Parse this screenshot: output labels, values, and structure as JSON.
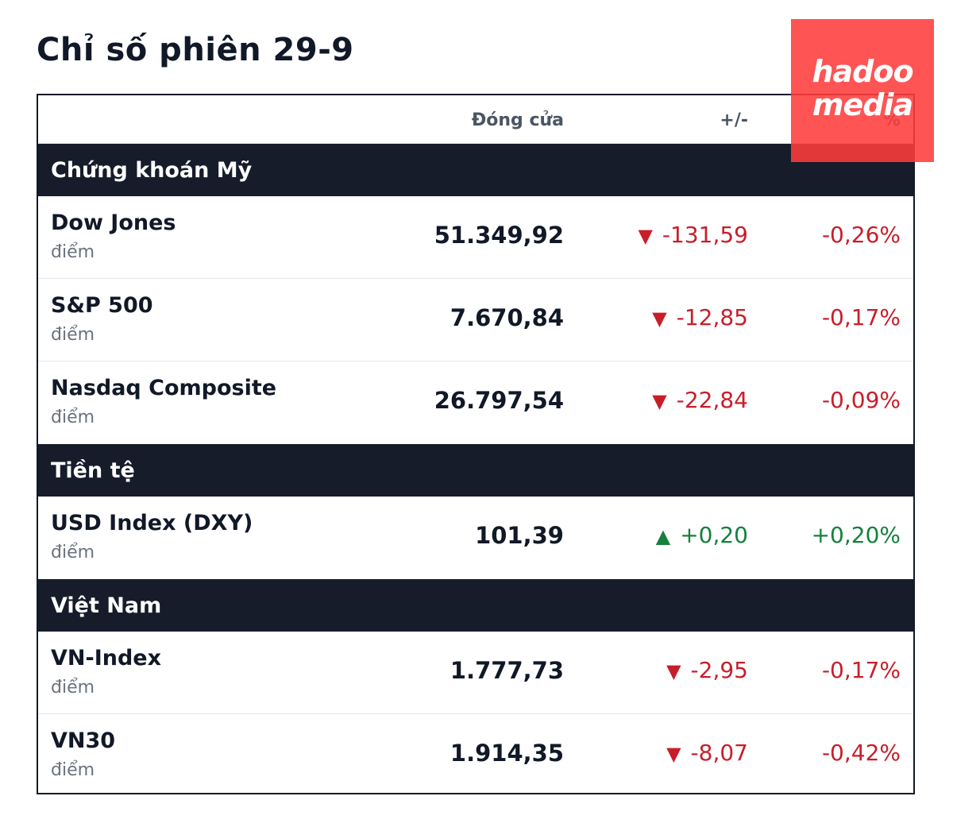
{
  "title": "Chỉ số phiên 29-9",
  "headers": {
    "close": "Đóng cửa",
    "change": "+/-",
    "pct": "%"
  },
  "sections": [
    {
      "label": "Chứng khoán Mỹ",
      "rows": [
        {
          "name": "Dow Jones",
          "unit": "điểm",
          "close": "51.349,92",
          "arrow": "▼",
          "change": "-131,59",
          "pct": "-0,26%",
          "direction": "down"
        },
        {
          "name": "S&P 500",
          "unit": "điểm",
          "close": "7.670,84",
          "arrow": "▼",
          "change": "-12,85",
          "pct": "-0,17%",
          "direction": "down"
        },
        {
          "name": "Nasdaq Composite",
          "unit": "điểm",
          "close": "26.797,54",
          "arrow": "▼",
          "change": "-22,84",
          "pct": "-0,09%",
          "direction": "down"
        }
      ]
    },
    {
      "label": "Tiền tệ",
      "rows": [
        {
          "name": "USD Index (DXY)",
          "unit": "điểm",
          "close": "101,39",
          "arrow": "▲",
          "change": "+0,20",
          "pct": "+0,20%",
          "direction": "up"
        }
      ]
    },
    {
      "label": "Việt Nam",
      "rows": [
        {
          "name": "VN-Index",
          "unit": "điểm",
          "close": "1.777,73",
          "arrow": "▼",
          "change": "-2,95",
          "pct": "-0,17%",
          "direction": "down"
        },
        {
          "name": "VN30",
          "unit": "điểm",
          "close": "1.914,35",
          "arrow": "▼",
          "change": "-8,07",
          "pct": "-0,42%",
          "direction": "down"
        }
      ]
    }
  ],
  "logo": {
    "line1": "hadoo",
    "line2": "media"
  },
  "colors": {
    "down": "#c81e2a",
    "up": "#15803d",
    "section_bg": "#161c2a",
    "logo_bg": "#ff3c3c"
  }
}
